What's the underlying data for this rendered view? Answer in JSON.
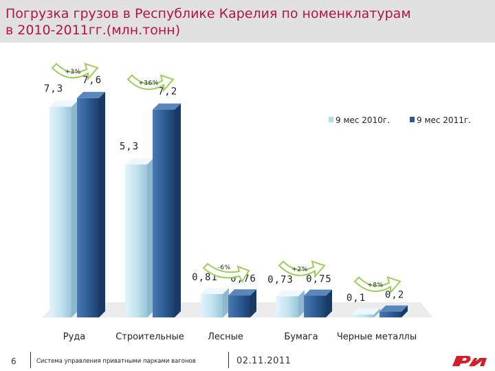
{
  "title": "Погрузка грузов в Республике Карелия по номенклатурам\nв 2010-2011гг.(млн.тонн)",
  "colors": {
    "title": "#b3124a",
    "series_2010": "#b8dcea",
    "series_2011": "#2e5a93",
    "arrow": "#9ccc5a"
  },
  "chart_data": {
    "type": "bar",
    "categories": [
      "Руда",
      "Строительные",
      "Лесные",
      "Бумага",
      "Черные металлы"
    ],
    "series": [
      {
        "name": "9 мес 2010г.",
        "values": [
          7.3,
          5.3,
          0.81,
          0.73,
          0.1
        ],
        "labels": [
          "7,3",
          "5,3",
          "0,81",
          "0,73",
          "0,1"
        ]
      },
      {
        "name": "9 мес 2011г.",
        "values": [
          7.6,
          7.2,
          0.76,
          0.75,
          0.2
        ],
        "labels": [
          "7,6",
          "7,2",
          "0,76",
          "0,75",
          "0,2"
        ]
      }
    ],
    "changes": [
      "+3%",
      "+36%",
      "-6%",
      "+2%",
      "+8%"
    ],
    "ylim": [
      0,
      8
    ],
    "grid": false,
    "legend": "top-right"
  },
  "footer": {
    "slide_number": "6",
    "text": "Система управления приватными парками вагонов",
    "date": "02.11.2011"
  },
  "logo_icon": "rzd-logo-icon"
}
